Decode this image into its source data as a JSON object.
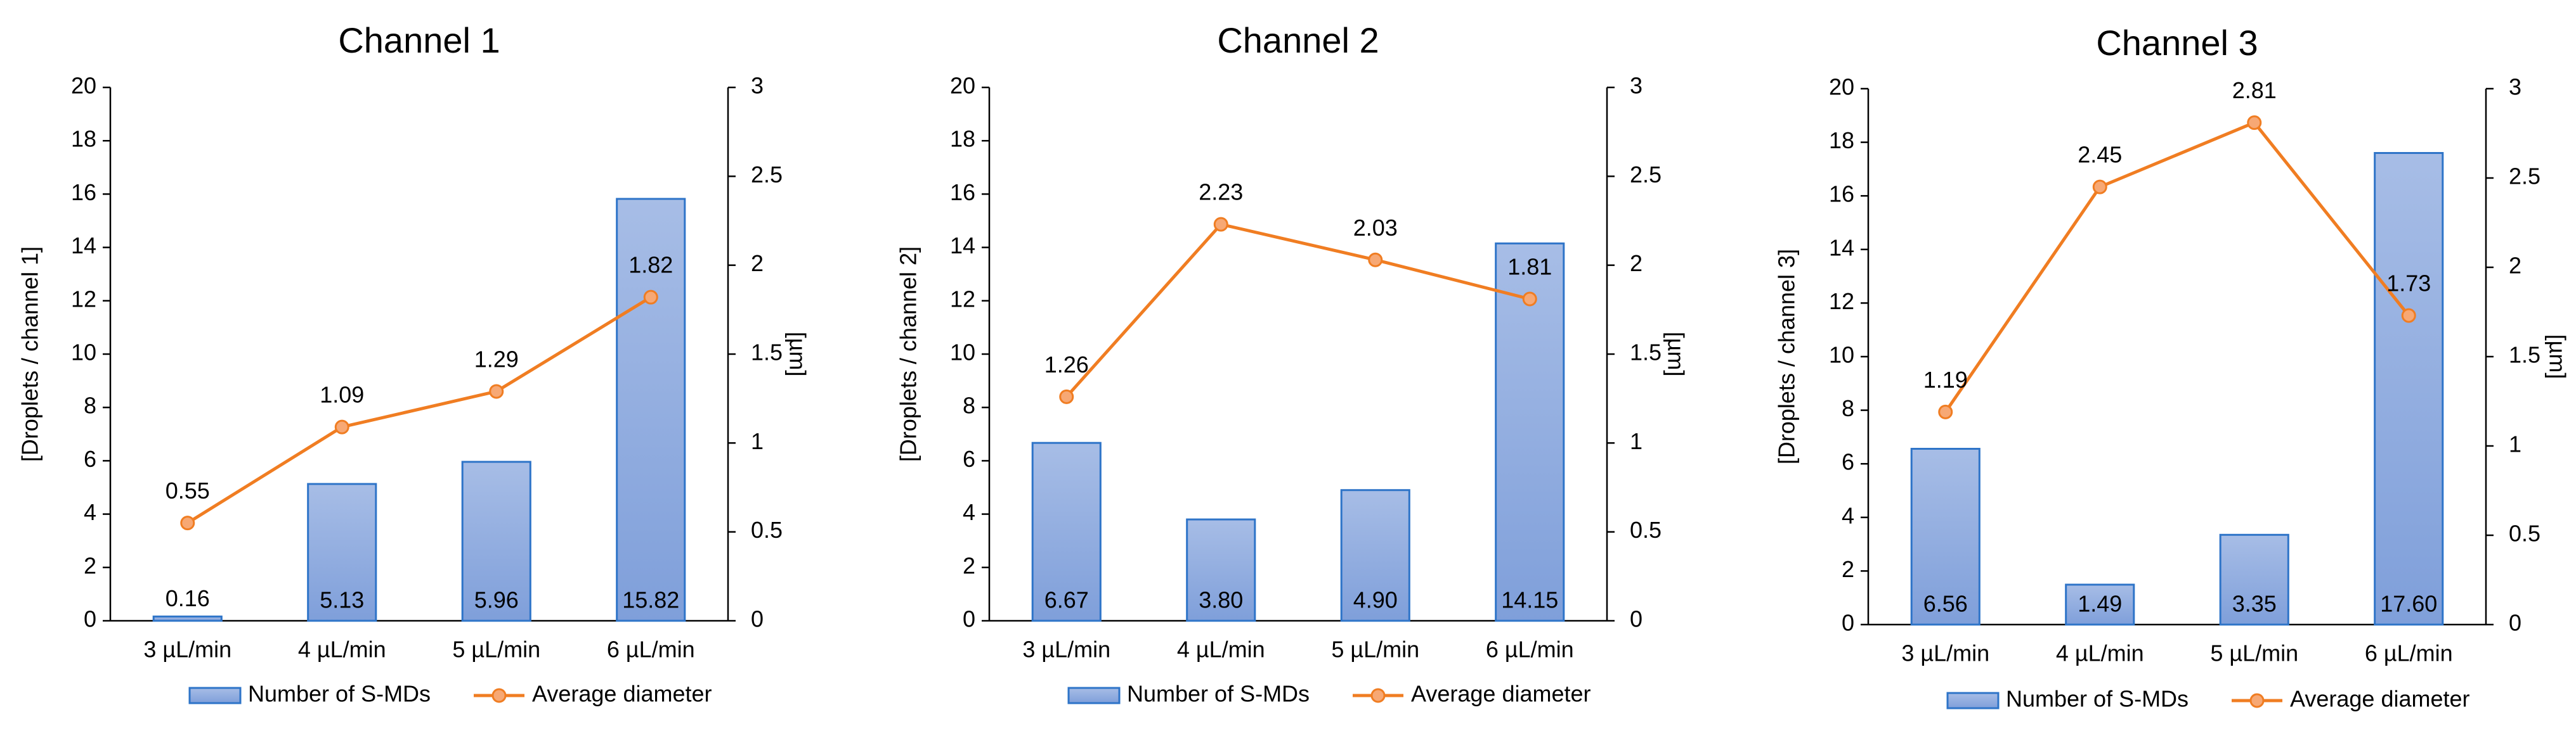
{
  "colors": {
    "bar_fill_top": "#a7bde6",
    "bar_fill_bottom": "#7f9fda",
    "bar_stroke": "#2e74c8",
    "line": "#f07d22",
    "marker_fill": "#f7a874",
    "axis": "#000000"
  },
  "legend": {
    "bar_label": "Number of S-MDs",
    "line_label": "Average diameter"
  },
  "chart_data": [
    {
      "type": "bar",
      "title": "Channel 1",
      "categories": [
        "3 µL/min",
        "4 µL/min",
        "5 µL/min",
        "6 µL/min"
      ],
      "ylabel": "[Droplets / channel 1]",
      "ylabel2": "[µm]",
      "ylim": [
        0,
        20
      ],
      "y2lim": [
        0,
        3
      ],
      "yticks": [
        "0",
        "2",
        "4",
        "6",
        "8",
        "10",
        "12",
        "14",
        "16",
        "18",
        "20"
      ],
      "y2ticks": [
        "0",
        "0.5",
        "1",
        "1.5",
        "2",
        "2.5",
        "3"
      ],
      "series": [
        {
          "name": "Number of S-MDs",
          "type": "bar",
          "axis": "left",
          "values": [
            0.16,
            5.13,
            5.96,
            15.82
          ],
          "labels": [
            "0.16",
            "5.13",
            "5.96",
            "15.82"
          ]
        },
        {
          "name": "Average diameter",
          "type": "line",
          "axis": "right",
          "values": [
            0.55,
            1.09,
            1.29,
            1.82
          ],
          "labels": [
            "0.55",
            "1.09",
            "1.29",
            "1.82"
          ]
        }
      ],
      "legend_position": "bottom"
    },
    {
      "type": "bar",
      "title": "Channel 2",
      "categories": [
        "3 µL/min",
        "4 µL/min",
        "5 µL/min",
        "6 µL/min"
      ],
      "ylabel": "[Droplets / channel 2]",
      "ylabel2": "[µm]",
      "ylim": [
        0,
        20
      ],
      "y2lim": [
        0,
        3
      ],
      "yticks": [
        "0",
        "2",
        "4",
        "6",
        "8",
        "10",
        "12",
        "14",
        "16",
        "18",
        "20"
      ],
      "y2ticks": [
        "0",
        "0.5",
        "1",
        "1.5",
        "2",
        "2.5",
        "3"
      ],
      "series": [
        {
          "name": "Number of S-MDs",
          "type": "bar",
          "axis": "left",
          "values": [
            6.67,
            3.8,
            4.9,
            14.15
          ],
          "labels": [
            "6.67",
            "3.80",
            "4.90",
            "14.15"
          ]
        },
        {
          "name": "Average diameter",
          "type": "line",
          "axis": "right",
          "values": [
            1.26,
            2.23,
            2.03,
            1.81
          ],
          "labels": [
            "1.26",
            "2.23",
            "2.03",
            "1.81"
          ]
        }
      ],
      "legend_position": "bottom"
    },
    {
      "type": "bar",
      "title": "Channel 3",
      "categories": [
        "3 µL/min",
        "4 µL/min",
        "5 µL/min",
        "6 µL/min"
      ],
      "ylabel": "[Droplets / channel 3]",
      "ylabel2": "[µm]",
      "ylim": [
        0,
        20
      ],
      "y2lim": [
        0,
        3
      ],
      "yticks": [
        "0",
        "2",
        "4",
        "6",
        "8",
        "10",
        "12",
        "14",
        "16",
        "18",
        "20"
      ],
      "y2ticks": [
        "0",
        "0.5",
        "1",
        "1.5",
        "2",
        "2.5",
        "3"
      ],
      "series": [
        {
          "name": "Number of S-MDs",
          "type": "bar",
          "axis": "left",
          "values": [
            6.56,
            1.49,
            3.35,
            17.6
          ],
          "labels": [
            "6.56",
            "1.49",
            "3.35",
            "17.60"
          ]
        },
        {
          "name": "Average diameter",
          "type": "line",
          "axis": "right",
          "values": [
            1.19,
            2.45,
            2.81,
            1.73
          ],
          "labels": [
            "1.19",
            "2.45",
            "2.81",
            "1.73"
          ]
        }
      ],
      "legend_position": "bottom"
    }
  ]
}
